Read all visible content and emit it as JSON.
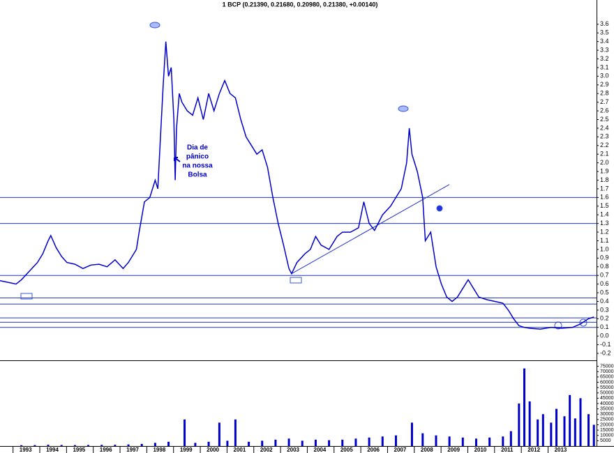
{
  "chart_data": [
    {
      "type": "line",
      "title": "1 BCP (0.21390, 0.21680, 0.20980, 0.21380, +0.00140)",
      "color": "#0000cc",
      "x": [
        1992.2,
        1992.5,
        1992.8,
        1993.0,
        1993.3,
        1993.6,
        1993.8,
        1994.0,
        1994.1,
        1994.3,
        1994.5,
        1994.7,
        1995.0,
        1995.3,
        1995.6,
        1995.9,
        1996.2,
        1996.5,
        1996.8,
        1997.0,
        1997.3,
        1997.4,
        1997.6,
        1997.8,
        1998.0,
        1998.1,
        1998.2,
        1998.3,
        1998.4,
        1998.5,
        1998.6,
        1998.7,
        1998.75,
        1998.8,
        1998.9,
        1999.0,
        1999.2,
        1999.4,
        1999.6,
        1999.8,
        2000.0,
        2000.2,
        2000.4,
        2000.6,
        2000.8,
        2001.0,
        2001.2,
        2001.4,
        2001.6,
        2001.8,
        2002.0,
        2002.2,
        2002.4,
        2002.6,
        2002.8,
        2003.0,
        2003.1,
        2003.3,
        2003.6,
        2003.8,
        2004.0,
        2004.2,
        2004.5,
        2004.8,
        2005.0,
        2005.3,
        2005.6,
        2005.8,
        2006.0,
        2006.2,
        2006.5,
        2006.8,
        2007.0,
        2007.2,
        2007.4,
        2007.5,
        2007.6,
        2007.8,
        2008.0,
        2008.1,
        2008.3,
        2008.5,
        2008.7,
        2008.9,
        2009.1,
        2009.3,
        2009.5,
        2009.7,
        2009.9,
        2010.1,
        2010.4,
        2010.7,
        2011.0,
        2011.2,
        2011.4,
        2011.6,
        2011.8,
        2012.0,
        2012.4,
        2012.8,
        2013.2,
        2013.6,
        2013.9,
        2014.2,
        2014.4
      ],
      "values": [
        0.64,
        0.62,
        0.6,
        0.65,
        0.75,
        0.85,
        0.95,
        1.1,
        1.16,
        1.02,
        0.92,
        0.85,
        0.83,
        0.78,
        0.82,
        0.83,
        0.8,
        0.88,
        0.78,
        0.85,
        1.0,
        1.2,
        1.55,
        1.6,
        1.8,
        1.7,
        2.3,
        2.9,
        3.4,
        3.0,
        3.1,
        2.5,
        1.8,
        2.4,
        2.8,
        2.7,
        2.6,
        2.55,
        2.75,
        2.5,
        2.8,
        2.6,
        2.8,
        2.95,
        2.8,
        2.75,
        2.5,
        2.3,
        2.2,
        2.1,
        2.15,
        1.95,
        1.6,
        1.3,
        1.05,
        0.78,
        0.72,
        0.85,
        0.95,
        1.0,
        1.15,
        1.05,
        1.0,
        1.15,
        1.2,
        1.2,
        1.25,
        1.55,
        1.3,
        1.22,
        1.4,
        1.5,
        1.6,
        1.7,
        2.0,
        2.4,
        2.1,
        1.9,
        1.6,
        1.1,
        1.2,
        0.8,
        0.6,
        0.45,
        0.4,
        0.45,
        0.55,
        0.65,
        0.55,
        0.45,
        0.42,
        0.4,
        0.38,
        0.3,
        0.2,
        0.12,
        0.1,
        0.09,
        0.08,
        0.1,
        0.09,
        0.1,
        0.14,
        0.2,
        0.22
      ],
      "xlim": [
        1992.2,
        2014.5
      ],
      "xticks": [
        1993,
        1994,
        1995,
        1996,
        1997,
        1998,
        1999,
        2000,
        2001,
        2002,
        2003,
        2004,
        2005,
        2006,
        2007,
        2008,
        2009,
        2010,
        2011,
        2012,
        2013
      ],
      "ylim": [
        -0.28,
        3.88
      ],
      "yticks": [
        -0.2,
        -0.1,
        {
          "value": 0,
          "label": "0.0"
        },
        0.1,
        0.2,
        0.3,
        0.4,
        0.5,
        0.6,
        0.7,
        0.8,
        0.9,
        {
          "value": 1,
          "label": "1.0"
        },
        1.1,
        1.2,
        1.3,
        1.4,
        1.5,
        1.6,
        1.7,
        1.8,
        1.9,
        {
          "value": 2,
          "label": "2.0"
        },
        2.1,
        2.2,
        2.3,
        2.4,
        2.5,
        2.6,
        2.7,
        2.8,
        2.9,
        {
          "value": 3,
          "label": "3.0"
        },
        3.1,
        3.2,
        3.3,
        3.4,
        3.5,
        3.6
      ],
      "reference_lines": [
        1.6,
        1.3,
        0.7,
        0.44,
        0.37,
        0.21,
        0.16,
        0.1
      ],
      "trend_line": {
        "x": [
          2003.1,
          2009.0
        ],
        "y": [
          0.72,
          1.75
        ]
      },
      "annotation": [
        "Dia de",
        "pânico",
        "na nossa",
        "Bolsa"
      ]
    },
    {
      "type": "bar",
      "color": "#0000cc",
      "x": [
        1993.0,
        1993.5,
        1994.0,
        1994.5,
        1995.0,
        1995.5,
        1996.0,
        1996.5,
        1997.0,
        1997.5,
        1998.0,
        1998.5,
        1999.1,
        1999.5,
        2000.0,
        2000.4,
        2000.7,
        2001.0,
        2001.5,
        2002.0,
        2002.5,
        2003.0,
        2003.5,
        2004.0,
        2004.5,
        2005.0,
        2005.5,
        2006.0,
        2006.5,
        2007.0,
        2007.6,
        2008.0,
        2008.5,
        2009.0,
        2009.5,
        2010.0,
        2010.5,
        2011.0,
        2011.3,
        2011.6,
        2011.8,
        2012.0,
        2012.3,
        2012.5,
        2012.8,
        2013.0,
        2013.3,
        2013.5,
        2013.7,
        2013.9,
        2014.2,
        2014.4
      ],
      "values": [
        800,
        900,
        1200,
        1000,
        900,
        1000,
        1100,
        1200,
        1500,
        2000,
        3000,
        4000,
        25000,
        3000,
        4000,
        22000,
        5000,
        25000,
        4000,
        5000,
        6000,
        7000,
        5000,
        6000,
        5500,
        6000,
        7000,
        8000,
        9000,
        10000,
        22000,
        12000,
        10000,
        9000,
        8000,
        7000,
        8000,
        9000,
        14000,
        40000,
        73000,
        42000,
        25000,
        30000,
        22000,
        35000,
        28000,
        48000,
        26000,
        45000,
        30000,
        20000
      ],
      "ylim": [
        0,
        80000
      ],
      "yticks": [
        5000,
        10000,
        15000,
        20000,
        25000,
        30000,
        35000,
        40000,
        45000,
        50000,
        55000,
        60000,
        65000,
        70000,
        75000
      ]
    }
  ]
}
